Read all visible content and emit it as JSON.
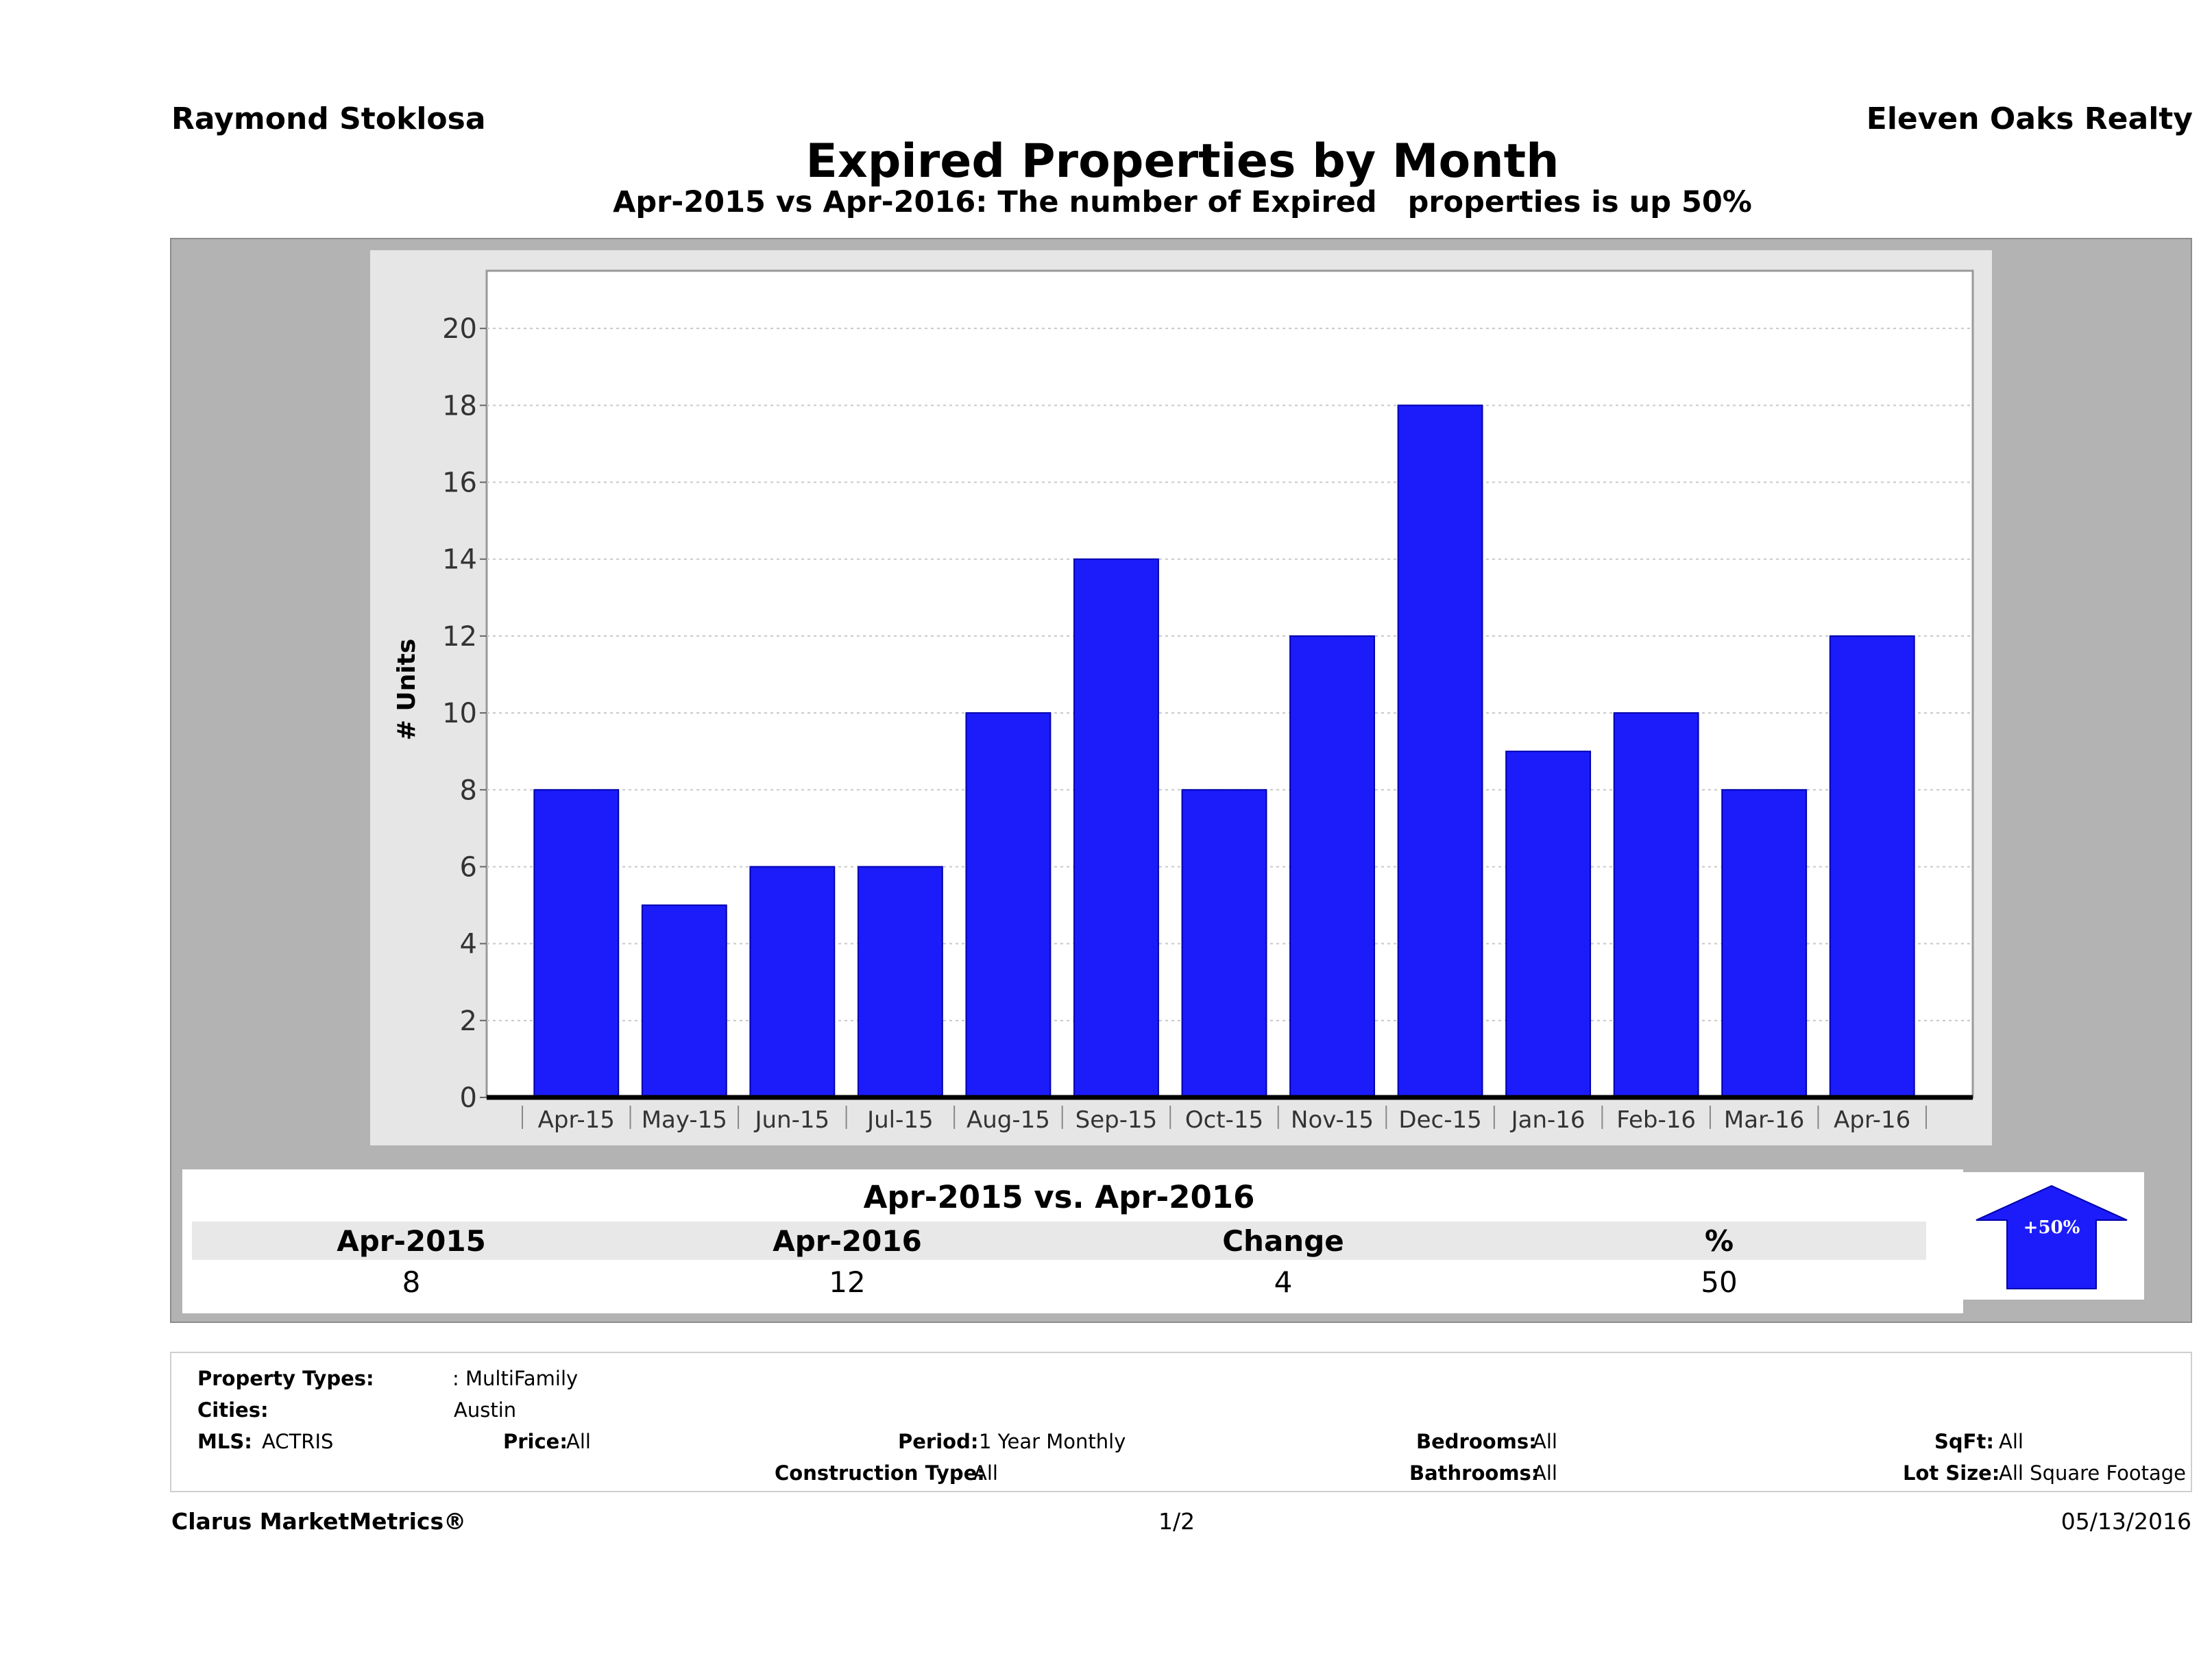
{
  "header": {
    "agent": "Raymond Stoklosa",
    "company": "Eleven Oaks Realty",
    "title": "Expired Properties by Month",
    "subtitle": "Apr-2015 vs Apr-2016: The number of Expired   properties is up 50%"
  },
  "chart_data": {
    "type": "bar",
    "ylabel": "# Units",
    "xlabel": "",
    "ylim": [
      0,
      21.5
    ],
    "yticks": [
      0,
      2,
      4,
      6,
      8,
      10,
      12,
      14,
      16,
      18,
      20
    ],
    "grid": true,
    "bar_color": "#1c1cfa",
    "categories": [
      "Apr-15",
      "May-15",
      "Jun-15",
      "Jul-15",
      "Aug-15",
      "Sep-15",
      "Oct-15",
      "Nov-15",
      "Dec-15",
      "Jan-16",
      "Feb-16",
      "Mar-16",
      "Apr-16"
    ],
    "values": [
      8,
      5,
      6,
      6,
      10,
      14,
      8,
      12,
      18,
      9,
      10,
      8,
      12
    ]
  },
  "comparison": {
    "title": "Apr-2015 vs. Apr-2016",
    "headers": [
      "Apr-2015",
      "Apr-2016",
      "Change",
      "%"
    ],
    "values": [
      "8",
      "12",
      "4",
      "50"
    ],
    "badge": "+50%",
    "badge_color": "#1c1cfa"
  },
  "filters": {
    "property_types_label": "Property Types:",
    "property_types_value": ": MultiFamily",
    "cities_label": "Cities:",
    "cities_value": "Austin",
    "mls_label": "MLS:",
    "mls_value": "ACTRIS",
    "price_label": "Price:",
    "price_value": "All",
    "period_label": "Period:",
    "period_value": "1 Year Monthly",
    "construction_label": "Construction Type:",
    "construction_value": "All",
    "bedrooms_label": "Bedrooms:",
    "bedrooms_value": "All",
    "bathrooms_label": "Bathrooms:",
    "bathrooms_value": "All",
    "sqft_label": "SqFt:",
    "sqft_value": "All",
    "lot_label": "Lot Size:",
    "lot_value": "All Square Footage"
  },
  "footer": {
    "brand": "Clarus MarketMetrics®",
    "page": "1/2",
    "date": "05/13/2016"
  }
}
